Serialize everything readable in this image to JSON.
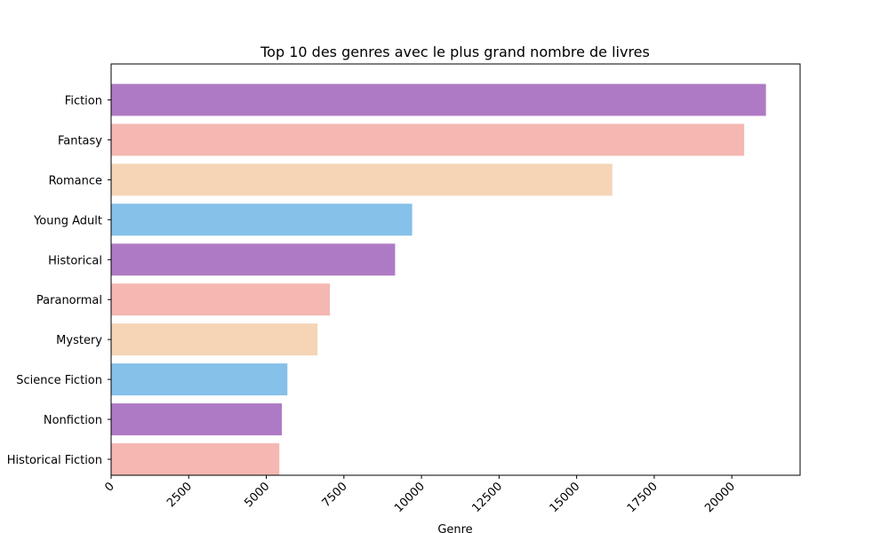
{
  "chart_data": {
    "type": "bar",
    "orientation": "horizontal",
    "title": "Top 10 des genres avec le plus grand nombre de livres",
    "xlabel": "Genre",
    "ylabel": "",
    "xlim": [
      0,
      22200
    ],
    "x_ticks": [
      0,
      2500,
      5000,
      7500,
      10000,
      12500,
      15000,
      17500,
      20000
    ],
    "grid": false,
    "categories": [
      "Fiction",
      "Fantasy",
      "Romance",
      "Young Adult",
      "Historical",
      "Paranormal",
      "Mystery",
      "Science Fiction",
      "Nonfiction",
      "Historical Fiction"
    ],
    "values": [
      21100,
      20400,
      16150,
      9700,
      9150,
      7050,
      6650,
      5680,
      5500,
      5420
    ],
    "colors": [
      "#af7ac5",
      "#f5b7b1",
      "#f5d5b5",
      "#85c1e9"
    ]
  }
}
